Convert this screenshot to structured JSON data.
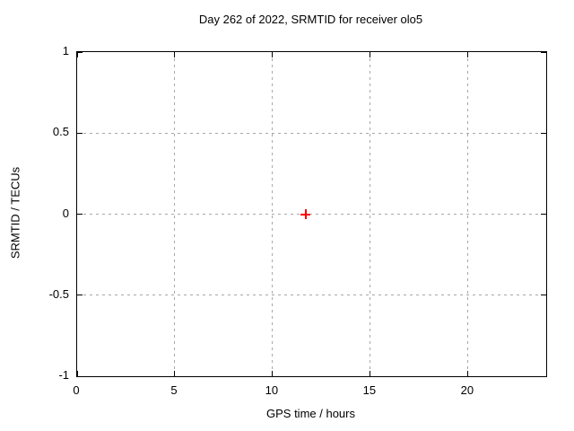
{
  "colors": {
    "background": "#ffffff",
    "border": "#000000",
    "grid": "#a8a8a8",
    "text": "#000000",
    "marker": "#ff0000"
  },
  "chart_data": {
    "type": "scatter",
    "title": "Day 262 of 2022, SRMTID for receiver olo5",
    "xlabel": "GPS time / hours",
    "ylabel": "SRMTID / TECUs",
    "xlim": [
      0,
      24
    ],
    "ylim": [
      -1,
      1
    ],
    "x_ticks": [
      0,
      5,
      10,
      15,
      20
    ],
    "x_tick_labels": [
      "0",
      "5",
      "10",
      "15",
      "20"
    ],
    "y_ticks": [
      -1,
      -0.5,
      0,
      0.5,
      1
    ],
    "y_tick_labels": [
      "-1",
      "-0.5",
      "0",
      "0.5",
      "1"
    ],
    "grid": true,
    "legend_position": "none",
    "series": [
      {
        "marker": "plus",
        "color": "#ff0000",
        "points": [
          {
            "x": 11.7,
            "y": 0.0
          }
        ]
      }
    ]
  }
}
